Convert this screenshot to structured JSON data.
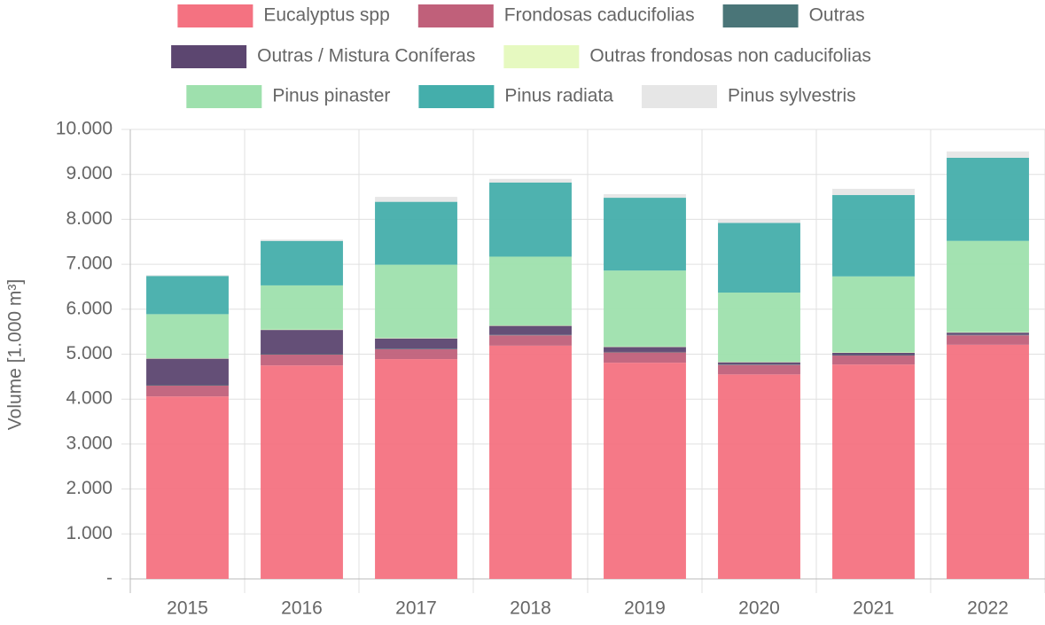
{
  "chart_data": {
    "type": "stacked_bar",
    "y_label": "Volume [1.000 m³]",
    "categories": [
      "2015",
      "2016",
      "2017",
      "2018",
      "2019",
      "2020",
      "2021",
      "2022"
    ],
    "series": [
      {
        "name": "Eucalyptus spp",
        "color": "#f47281",
        "values": [
          4060,
          4750,
          4890,
          5190,
          4810,
          4550,
          4770,
          5210
        ]
      },
      {
        "name": "Frondosas caducifolias",
        "color": "#c0607a",
        "values": [
          240,
          240,
          220,
          230,
          230,
          210,
          200,
          210
        ]
      },
      {
        "name": "Outras",
        "color": "#4a7578",
        "values": [
          10,
          10,
          10,
          10,
          10,
          10,
          10,
          10
        ]
      },
      {
        "name": "Outras / Mistura Coníferas",
        "color": "#5c4670",
        "values": [
          590,
          540,
          230,
          200,
          110,
          50,
          50,
          50
        ]
      },
      {
        "name": "Outras frondosas non caducifolias",
        "color": "#e6f9c0",
        "values": [
          10,
          10,
          10,
          10,
          10,
          10,
          10,
          10
        ]
      },
      {
        "name": "Pinus pinaster",
        "color": "#9ee0ad",
        "values": [
          980,
          980,
          1630,
          1530,
          1690,
          1540,
          1690,
          2030
        ]
      },
      {
        "name": "Pinus radiata",
        "color": "#44aeab",
        "values": [
          850,
          990,
          1400,
          1650,
          1620,
          1550,
          1810,
          1850
        ]
      },
      {
        "name": "Pinus sylvestris",
        "color": "#e6e6e6",
        "values": [
          20,
          30,
          110,
          80,
          80,
          80,
          140,
          140
        ]
      }
    ],
    "legend_rows": [
      3,
      2,
      3
    ],
    "ylim": [
      0,
      10000
    ],
    "yticks": [
      {
        "value": 0,
        "label": "-"
      },
      {
        "value": 1000,
        "label": "1.000"
      },
      {
        "value": 2000,
        "label": "2.000"
      },
      {
        "value": 3000,
        "label": "3.000"
      },
      {
        "value": 4000,
        "label": "4.000"
      },
      {
        "value": 5000,
        "label": "5.000"
      },
      {
        "value": 6000,
        "label": "6.000"
      },
      {
        "value": 7000,
        "label": "7.000"
      },
      {
        "value": 8000,
        "label": "8.000"
      },
      {
        "value": 9000,
        "label": "9.000"
      },
      {
        "value": 10000,
        "label": "10.000"
      }
    ],
    "grid": true
  }
}
